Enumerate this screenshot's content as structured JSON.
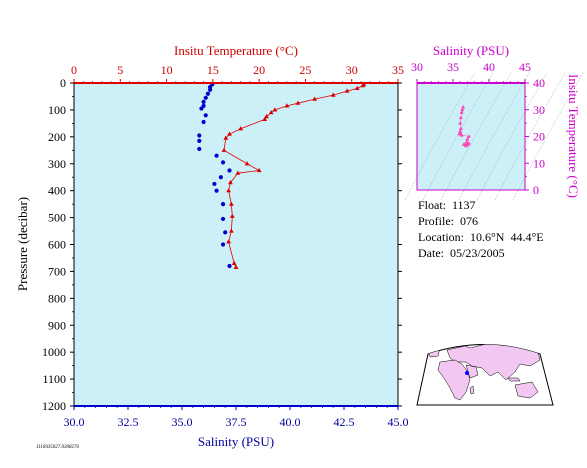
{
  "chart_data": [
    {
      "type": "line",
      "top_axis": {
        "label": "Insitu Temperature (°C)",
        "range": [
          0,
          35
        ],
        "ticks": [
          "0",
          "5",
          "10",
          "15",
          "20",
          "25",
          "30",
          "35"
        ],
        "color": "#cc0000"
      },
      "bottom_axis": {
        "label": "Salinity (PSU)",
        "range": [
          30.0,
          45.0
        ],
        "ticks": [
          "30.0",
          "32.5",
          "35.0",
          "37.5",
          "40.0",
          "42.5",
          "45.0"
        ],
        "color": "#000099"
      },
      "left_axis": {
        "label": "Pressure (decibar)",
        "range": [
          0,
          1200
        ],
        "inverted": true,
        "ticks": [
          "0",
          "100",
          "200",
          "300",
          "400",
          "500",
          "600",
          "700",
          "800",
          "900",
          "1000",
          "1100",
          "1200"
        ]
      },
      "series": [
        {
          "marker": "triangle",
          "axis": "temperature",
          "color": "#dd0000",
          "points": [
            [
              31.3,
              5
            ],
            [
              31.2,
              10
            ],
            [
              30.6,
              20
            ],
            [
              29.5,
              30
            ],
            [
              28.0,
              45
            ],
            [
              26.0,
              60
            ],
            [
              24.2,
              75
            ],
            [
              23.0,
              85
            ],
            [
              21.7,
              100
            ],
            [
              21.3,
              110
            ],
            [
              20.8,
              125
            ],
            [
              20.6,
              135
            ],
            [
              18.0,
              170
            ],
            [
              16.8,
              190
            ],
            [
              16.4,
              205
            ],
            [
              16.2,
              250
            ],
            [
              18.7,
              300
            ],
            [
              20.0,
              325
            ],
            [
              17.7,
              335
            ],
            [
              16.9,
              370
            ],
            [
              16.7,
              400
            ],
            [
              17.0,
              450
            ],
            [
              17.1,
              495
            ],
            [
              17.0,
              550
            ],
            [
              16.7,
              590
            ],
            [
              17.3,
              670
            ],
            [
              17.5,
              685
            ]
          ]
        },
        {
          "marker": "circle",
          "axis": "salinity",
          "color": "#0000cc",
          "points": [
            [
              36.4,
              5
            ],
            [
              36.3,
              15
            ],
            [
              36.3,
              25
            ],
            [
              36.2,
              40
            ],
            [
              36.1,
              55
            ],
            [
              36.0,
              70
            ],
            [
              36.0,
              85
            ],
            [
              35.9,
              95
            ],
            [
              36.1,
              120
            ],
            [
              36.0,
              145
            ],
            [
              35.8,
              195
            ],
            [
              35.8,
              215
            ],
            [
              35.8,
              245
            ],
            [
              36.6,
              270
            ],
            [
              36.9,
              295
            ],
            [
              37.2,
              325
            ],
            [
              36.8,
              350
            ],
            [
              36.5,
              375
            ],
            [
              36.6,
              400
            ],
            [
              36.9,
              450
            ],
            [
              36.9,
              505
            ],
            [
              37.0,
              555
            ],
            [
              36.9,
              600
            ],
            [
              37.2,
              680
            ]
          ]
        }
      ]
    },
    {
      "type": "scatter",
      "top_axis": {
        "label": "Salinity (PSU)",
        "range": [
          30,
          45
        ],
        "ticks": [
          "30",
          "35",
          "40",
          "45"
        ],
        "color": "#cc00cc"
      },
      "right_axis": {
        "label": "Insitu Temperature (°C)",
        "range": [
          0,
          40
        ],
        "ticks": [
          "0",
          "10",
          "20",
          "30",
          "40"
        ],
        "color": "#cc00cc"
      },
      "points": [
        [
          36.4,
          31
        ],
        [
          36.3,
          30
        ],
        [
          36.2,
          29
        ],
        [
          36.1,
          27
        ],
        [
          36.0,
          25
        ],
        [
          36.1,
          23
        ],
        [
          36.0,
          22
        ],
        [
          35.9,
          21
        ],
        [
          36.1,
          21
        ],
        [
          36.2,
          20.5
        ],
        [
          37.2,
          20
        ],
        [
          37.0,
          19
        ],
        [
          36.9,
          18
        ],
        [
          37.0,
          17.5
        ],
        [
          36.6,
          17
        ],
        [
          36.9,
          17.2
        ],
        [
          37.0,
          17
        ],
        [
          36.5,
          17
        ],
        [
          36.9,
          16.9
        ],
        [
          37.2,
          17.4
        ],
        [
          36.8,
          16.5
        ]
      ]
    }
  ],
  "info": {
    "float": "Float:  1137",
    "profile": "Profile:  076",
    "location": "Location:  10.6°N  44.4°E",
    "date": "Date:  05/23/2005"
  },
  "file_id": "1116935027.0308276",
  "map": {
    "marker_lat": 10.6,
    "marker_lon": 44.4
  },
  "colors": {
    "plot_bg": "#ccf0f8",
    "land": "#f2c8f2",
    "ocean": "#ffffff"
  }
}
